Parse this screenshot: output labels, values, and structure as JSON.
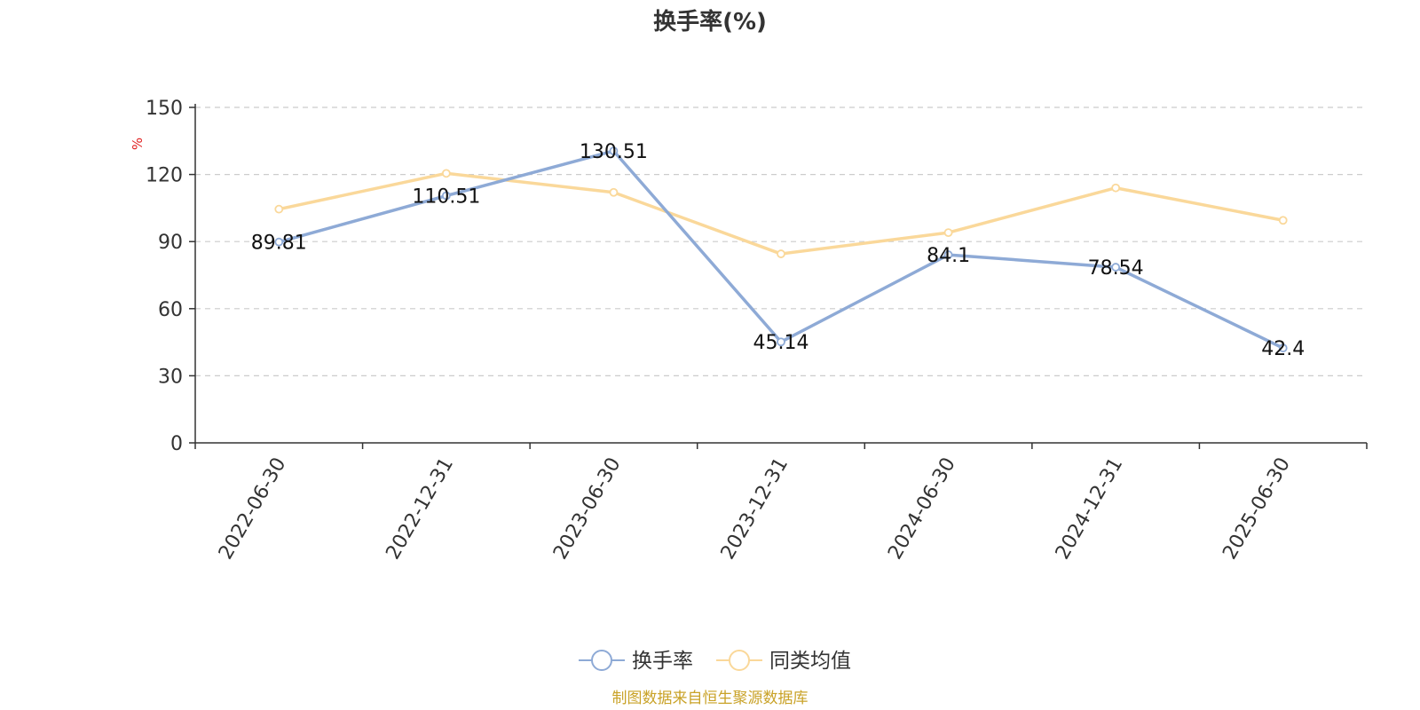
{
  "chart_data": {
    "type": "line",
    "title": "换手率(%)",
    "ylabel": "%",
    "xlabel": "",
    "categories": [
      "2022-06-30",
      "2022-12-31",
      "2023-06-30",
      "2023-12-31",
      "2024-06-30",
      "2024-12-31",
      "2025-06-30"
    ],
    "ylim": [
      0,
      150
    ],
    "yticks": [
      0,
      30,
      60,
      90,
      120,
      150
    ],
    "grid": true,
    "legend_position": "bottom",
    "series": [
      {
        "name": "换手率",
        "values": [
          89.81,
          110.51,
          130.51,
          45.14,
          84.1,
          78.54,
          42.4
        ],
        "labels": [
          "89.81",
          "110.51",
          "130.51",
          "45.14",
          "84.1",
          "78.54",
          "42.4"
        ],
        "color": "#8eaad6"
      },
      {
        "name": "同类均值",
        "values": [
          104.5,
          120.5,
          112,
          84.5,
          94,
          114,
          99.5
        ],
        "color": "#fad89a"
      }
    ],
    "source": "制图数据来自恒生聚源数据库",
    "source_color": "#c9a227",
    "unit_color": "#e02020"
  }
}
